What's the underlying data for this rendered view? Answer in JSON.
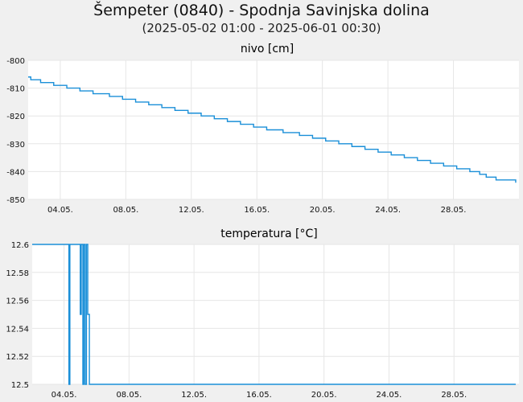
{
  "title": "Šempeter (0840) - Spodnja Savinjska dolina",
  "subtitle": "(2025-05-02 01:00 - 2025-06-01 00:30)",
  "colors": {
    "line": "#1a8fd8",
    "grid": "#e6e6e6",
    "background": "#f0f0f0",
    "plot": "#ffffff"
  },
  "chart_data": [
    {
      "type": "line",
      "title": "nivo [cm]",
      "x_ticks": [
        "04.05.",
        "08.05.",
        "12.05.",
        "16.05.",
        "20.05.",
        "24.05.",
        "28.05."
      ],
      "x_tick_days": [
        4,
        8,
        12,
        16,
        20,
        24,
        28
      ],
      "xlim_days": [
        2.04,
        32.0
      ],
      "ylim": [
        -850,
        -800
      ],
      "y_ticks": [
        -800,
        -810,
        -820,
        -830,
        -840,
        -850
      ],
      "grid": true,
      "series": [
        {
          "x": [
            2.04,
            2.2,
            2.8,
            3.6,
            4.4,
            5.2,
            6.0,
            7.0,
            7.8,
            8.6,
            9.4,
            10.2,
            11.0,
            11.8,
            12.6,
            13.4,
            14.2,
            15.0,
            15.8,
            16.6,
            17.6,
            18.6,
            19.4,
            20.2,
            21.0,
            21.8,
            22.6,
            23.4,
            24.2,
            25.0,
            25.8,
            26.6,
            27.4,
            28.2,
            29.0,
            29.6,
            30.0,
            30.6,
            31.0,
            31.4,
            31.8
          ],
          "y": [
            -806,
            -807,
            -808,
            -809,
            -810,
            -811,
            -812,
            -813,
            -814,
            -815,
            -816,
            -817,
            -818,
            -819,
            -820,
            -821,
            -822,
            -823,
            -824,
            -825,
            -826,
            -827,
            -828,
            -829,
            -830,
            -831,
            -832,
            -833,
            -834,
            -835,
            -836,
            -837,
            -838,
            -839,
            -840,
            -841,
            -842,
            -843,
            -843,
            -843,
            -844
          ]
        }
      ]
    },
    {
      "type": "line",
      "title": "temperatura [°C]",
      "x_ticks": [
        "04.05.",
        "08.05.",
        "12.05.",
        "16.05.",
        "20.05.",
        "24.05.",
        "28.05."
      ],
      "x_tick_days": [
        4,
        8,
        12,
        16,
        20,
        24,
        28
      ],
      "xlim_days": [
        2.04,
        32.0
      ],
      "ylim": [
        12.5,
        12.6
      ],
      "y_ticks": [
        "12.6",
        "12.58",
        "12.56",
        "12.54",
        "12.52",
        "12.5"
      ],
      "grid": true,
      "series": [
        {
          "x": [
            2.04,
            4.3,
            4.3,
            4.36,
            4.36,
            5.0,
            5.0,
            5.06,
            5.06,
            5.16,
            5.16,
            5.22,
            5.22,
            5.3,
            5.3,
            5.38,
            5.38,
            5.46,
            5.46,
            5.56,
            5.56,
            31.8
          ],
          "y": [
            12.6,
            12.6,
            12.5,
            12.5,
            12.6,
            12.6,
            12.55,
            12.55,
            12.6,
            12.6,
            12.5,
            12.5,
            12.6,
            12.6,
            12.5,
            12.5,
            12.6,
            12.6,
            12.55,
            12.55,
            12.5,
            12.5
          ]
        }
      ]
    }
  ]
}
